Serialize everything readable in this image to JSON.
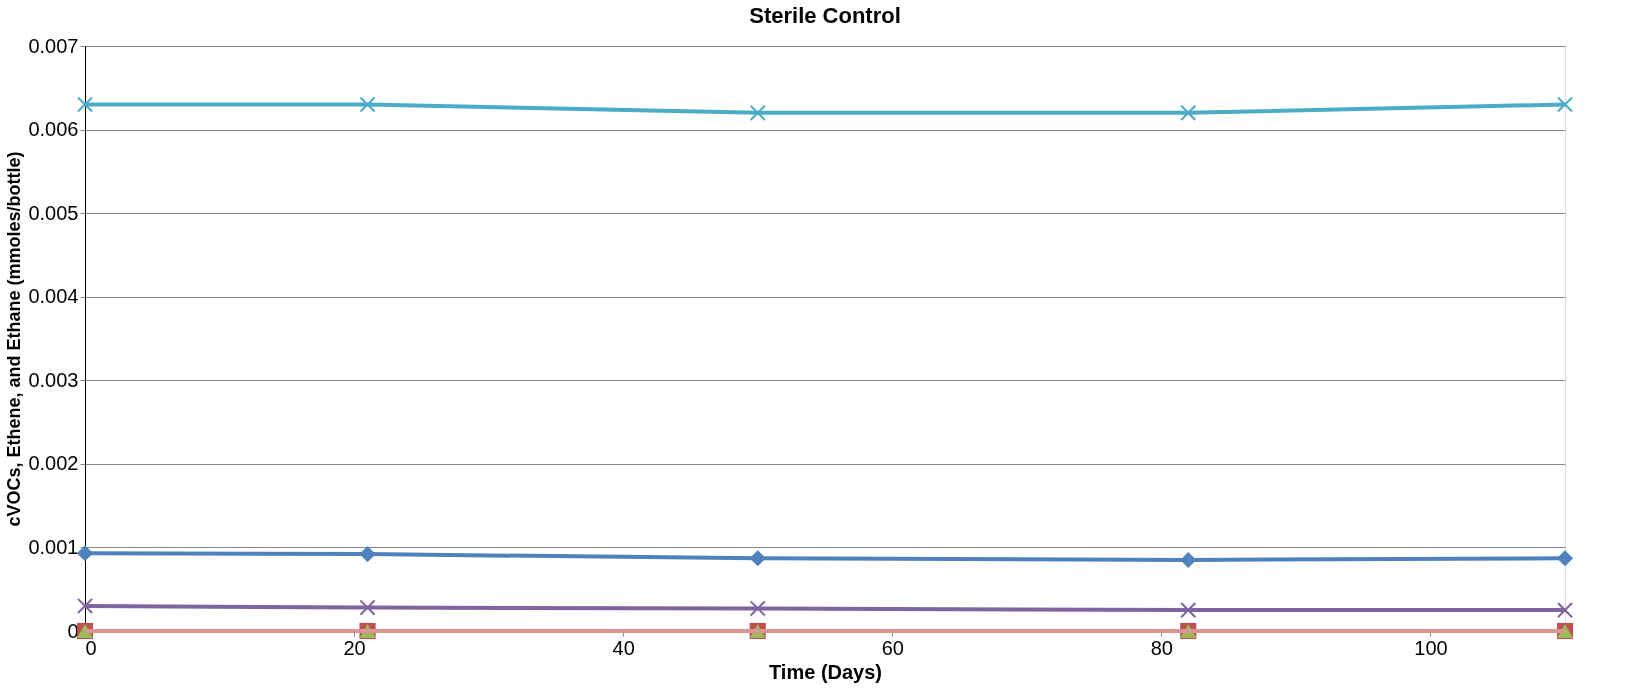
{
  "chart_data": {
    "type": "line",
    "title": "Sterile Control",
    "xlabel": "Time (Days)",
    "ylabel": "cVOCs, Ethene, and Ethane (mmoles/bottle)",
    "x": [
      0,
      21,
      50,
      82,
      110
    ],
    "series": [
      {
        "color": "#4bacc6",
        "marker": "cross",
        "values": [
          0.0063,
          0.0063,
          0.0062,
          0.0062,
          0.0063
        ]
      },
      {
        "color": "#4f81bd",
        "marker": "diamond",
        "values": [
          0.00093,
          0.00092,
          0.00087,
          0.00085,
          0.00087
        ]
      },
      {
        "color": "#8064a2",
        "marker": "cross",
        "values": [
          0.0003,
          0.00028,
          0.00027,
          0.00025,
          0.00025
        ]
      },
      {
        "type": "scatter",
        "color": "#c0504d",
        "marker": "square",
        "values": [
          0,
          0,
          0,
          0,
          0
        ]
      },
      {
        "type": "scatter",
        "color": "#9bbb59",
        "marker": "triangle",
        "values": [
          0,
          0,
          0,
          0,
          0
        ]
      },
      {
        "color": "#d99694",
        "marker": "none",
        "values": [
          0,
          0,
          0,
          0,
          0
        ]
      }
    ],
    "xlim": [
      0,
      110
    ],
    "xticks": [
      0,
      20,
      40,
      60,
      80,
      100
    ],
    "ylim": [
      0,
      0.007
    ],
    "yticks": [
      0,
      0.001,
      0.002,
      0.003,
      0.004,
      0.005,
      0.006,
      0.007
    ],
    "grid": "y"
  }
}
